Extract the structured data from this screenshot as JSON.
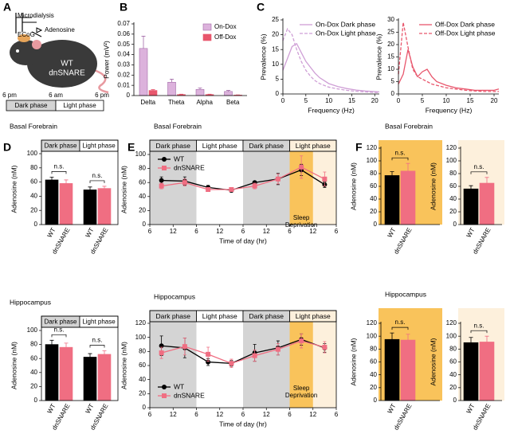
{
  "panels": [
    "A",
    "B",
    "C",
    "D",
    "E",
    "F"
  ],
  "diagram_a": {
    "labels": [
      "Microdialysis",
      "ECoG",
      "Adenosine"
    ],
    "genotype": [
      "WT",
      "dnSNARE"
    ],
    "times": [
      "6 pm",
      "6 am",
      "6 pm"
    ],
    "phases": [
      "Dark phase",
      "Light phase"
    ]
  },
  "chart_data": [
    {
      "type": "bar",
      "ylabel": "Power (mV²)",
      "categories": [
        "Delta",
        "Theta",
        "Alpha",
        "Beta"
      ],
      "series": [
        {
          "name": "On-Dox",
          "color": "#dcb2dc",
          "values": [
            0.046,
            0.013,
            0.006,
            0.004
          ],
          "errors": [
            0.012,
            0.003,
            0.0015,
            0.001
          ]
        },
        {
          "name": "Off-Dox",
          "color": "#e8566c",
          "values": [
            0.005,
            0.001,
            0.001,
            0.0005
          ],
          "errors": [
            0.0008,
            0.0003,
            0.0003,
            0.0002
          ]
        }
      ],
      "ylim": [
        0,
        0.07
      ],
      "yticks": [
        0,
        0.01,
        0.02,
        0.03,
        0.04,
        0.05,
        0.06,
        0.07
      ],
      "legend": "upper right"
    },
    {
      "type": "line",
      "xlabel": "Frequency (Hz)",
      "ylabel": "Prevalence (%)",
      "x": [
        0,
        1,
        2,
        3,
        4,
        5,
        6,
        7,
        8,
        10,
        12,
        14,
        16,
        18,
        20,
        21
      ],
      "series": [
        {
          "name": "On-Dox Dark phase",
          "color": "#cf9fd6",
          "line_style": "solid",
          "values": [
            8,
            12,
            16,
            17,
            14,
            11,
            9,
            7,
            5.5,
            3.5,
            2.5,
            1.8,
            1.3,
            1,
            0.8,
            0.7
          ]
        },
        {
          "name": "On-Dox Light phase",
          "color": "#cf9fd6",
          "line_style": "dashed",
          "values": [
            18,
            22,
            20,
            15,
            11,
            8,
            6,
            4.5,
            3.5,
            2.3,
            1.7,
            1.2,
            0.9,
            0.7,
            0.5,
            0.5
          ]
        }
      ],
      "xlim": [
        0,
        21
      ],
      "xticks": [
        0,
        5,
        10,
        15,
        20
      ],
      "ylim": [
        0,
        25
      ],
      "yticks": [
        0,
        5,
        10,
        15,
        20,
        25
      ],
      "legend": "upper right"
    },
    {
      "type": "line",
      "xlabel": "Frequency (Hz)",
      "ylabel": "Prevalence (%)",
      "x": [
        0,
        1,
        2,
        3,
        4,
        5,
        6,
        7,
        8,
        10,
        12,
        14,
        16,
        18,
        20,
        21
      ],
      "series": [
        {
          "name": "Off-Dox Dark phase",
          "color": "#e8566c",
          "line_style": "solid",
          "values": [
            4,
            8,
            18,
            11,
            7,
            9,
            10,
            7,
            5,
            3.5,
            2.5,
            2,
            1.5,
            1.5,
            1.5,
            2
          ]
        },
        {
          "name": "Off-Dox Light phase",
          "color": "#e8566c",
          "line_style": "dashed",
          "values": [
            8,
            29,
            19,
            10,
            7,
            6,
            5,
            4,
            3.5,
            2.5,
            2,
            1.5,
            1.2,
            1,
            1,
            1
          ]
        }
      ],
      "xlim": [
        0,
        21
      ],
      "xticks": [
        0,
        5,
        10,
        15,
        20
      ],
      "ylim": [
        0,
        30
      ],
      "yticks": [
        0,
        5,
        10,
        15,
        20,
        25,
        30
      ],
      "legend": "upper right"
    },
    {
      "type": "bar",
      "title": "Basal Forebrain",
      "ylabel": "Adenosine (nM)",
      "categories": [
        "Dark phase",
        "Light phase"
      ],
      "category_colors": [
        "#d4d4d4",
        "#ffffff"
      ],
      "series": [
        {
          "name": "WT",
          "color": "#000000",
          "values": [
            63,
            49
          ],
          "errors": [
            4,
            4
          ]
        },
        {
          "name": "dnSNARE",
          "color": "#f06e82",
          "values": [
            58,
            51
          ],
          "errors": [
            5,
            3
          ]
        }
      ],
      "ylim": [
        0,
        100
      ],
      "yticks": [
        0,
        20,
        40,
        60,
        80,
        100
      ],
      "annotations": [
        "n.s.",
        "n.s."
      ],
      "frame": true
    },
    {
      "type": "bar",
      "title": "Hippocampus",
      "ylabel": "Adenosine (nM)",
      "categories": [
        "Dark phase",
        "Light phase"
      ],
      "category_colors": [
        "#d4d4d4",
        "#ffffff"
      ],
      "series": [
        {
          "name": "WT",
          "color": "#000000",
          "values": [
            80,
            62
          ],
          "errors": [
            6,
            5
          ]
        },
        {
          "name": "dnSNARE",
          "color": "#f06e82",
          "values": [
            76,
            66
          ],
          "errors": [
            6,
            5
          ]
        }
      ],
      "ylim": [
        0,
        100
      ],
      "yticks": [
        0,
        20,
        40,
        60,
        80,
        100
      ],
      "annotations": [
        "n.s.",
        "n.s."
      ],
      "frame": true
    },
    {
      "type": "line",
      "title": "Basal Forebrain",
      "xlabel": "Time of day (hr)",
      "ylabel": "Adenosine (nM)",
      "x": [
        3,
        9,
        15,
        21,
        27,
        33,
        39,
        45
      ],
      "xlim": [
        0,
        48
      ],
      "xticks": [
        {
          "value": 0,
          "label": "6"
        },
        {
          "value": 6,
          "label": "12"
        },
        {
          "value": 12,
          "label": "6"
        },
        {
          "value": 18,
          "label": "12"
        },
        {
          "value": 24,
          "label": "6"
        },
        {
          "value": 30,
          "label": "12"
        },
        {
          "value": 36,
          "label": "6"
        },
        {
          "value": 42,
          "label": "12"
        },
        {
          "value": 48,
          "label": "6"
        }
      ],
      "ylim": [
        0,
        100
      ],
      "yticks": [
        0,
        20,
        40,
        60,
        80,
        100
      ],
      "frame": true,
      "bands": [
        {
          "label": "Dark phase",
          "x": [
            0,
            12
          ],
          "color": "#d4d4d4"
        },
        {
          "label": "Light phase",
          "x": [
            12,
            24
          ],
          "color": "#ffffff"
        },
        {
          "label": "Dark phase",
          "x": [
            24,
            36
          ],
          "color": "#d4d4d4"
        },
        {
          "label": "Light phase",
          "x": [
            36,
            48
          ],
          "color": "#fdf0dc"
        }
      ],
      "shading": [
        {
          "label": "Sleep Deprivation",
          "x": [
            36,
            42
          ],
          "color": "#f9c35b"
        }
      ],
      "series": [
        {
          "name": "WT",
          "color": "#000000",
          "marker": "circle",
          "values": [
            63,
            62,
            53,
            49,
            60,
            65,
            78,
            57
          ],
          "errors": [
            5,
            6,
            3,
            3,
            2,
            8,
            8,
            4
          ]
        },
        {
          "name": "dnSNARE",
          "color": "#f06e82",
          "marker": "square",
          "values": [
            55,
            60,
            50,
            50,
            55,
            65,
            82,
            65
          ],
          "errors": [
            4,
            5,
            3,
            3,
            4,
            7,
            16,
            10
          ]
        }
      ],
      "legend": "upper left"
    },
    {
      "type": "line",
      "title": "Hippocampus",
      "xlabel": "Time of day (hr)",
      "ylabel": "Adenosine (nM)",
      "x": [
        3,
        9,
        15,
        21,
        27,
        33,
        39,
        45
      ],
      "xlim": [
        0,
        48
      ],
      "xticks": [
        {
          "value": 0,
          "label": "6"
        },
        {
          "value": 6,
          "label": "12"
        },
        {
          "value": 12,
          "label": "6"
        },
        {
          "value": 18,
          "label": "12"
        },
        {
          "value": 24,
          "label": "6"
        },
        {
          "value": 30,
          "label": "12"
        },
        {
          "value": 36,
          "label": "6"
        },
        {
          "value": 42,
          "label": "12"
        },
        {
          "value": 48,
          "label": "6"
        }
      ],
      "ylim": [
        0,
        120
      ],
      "yticks": [
        0,
        20,
        40,
        60,
        80,
        100,
        120
      ],
      "frame": true,
      "bands": [
        {
          "label": "Dark phase",
          "x": [
            0,
            12
          ],
          "color": "#d4d4d4"
        },
        {
          "label": "Light phase",
          "x": [
            12,
            24
          ],
          "color": "#ffffff"
        },
        {
          "label": "Dark phase",
          "x": [
            24,
            36
          ],
          "color": "#d4d4d4"
        },
        {
          "label": "Light phase",
          "x": [
            36,
            48
          ],
          "color": "#fdf0dc"
        }
      ],
      "shading": [
        {
          "label": "Sleep Deprivation",
          "x": [
            36,
            42
          ],
          "color": "#f9c35b"
        }
      ],
      "series": [
        {
          "name": "WT",
          "color": "#000000",
          "marker": "circle",
          "values": [
            88,
            85,
            65,
            63,
            78,
            85,
            97,
            85
          ],
          "errors": [
            14,
            14,
            5,
            4,
            12,
            10,
            8,
            6
          ]
        },
        {
          "name": "dnSNARE",
          "color": "#f06e82",
          "marker": "square",
          "values": [
            78,
            87,
            76,
            63,
            74,
            83,
            95,
            86
          ],
          "errors": [
            8,
            12,
            10,
            6,
            8,
            8,
            10,
            8
          ]
        }
      ],
      "legend": "lower left"
    },
    {
      "type": "bar",
      "title": "Basal Forebrain",
      "ylabel": "Adenosine (nM)",
      "background": "#f9c35b",
      "series": [
        {
          "name": "WT",
          "color": "#000000",
          "values": [
            77
          ],
          "errors": [
            6
          ]
        },
        {
          "name": "dnSNARE",
          "color": "#f06e82",
          "values": [
            84
          ],
          "errors": [
            12
          ]
        }
      ],
      "ylim": [
        0,
        120
      ],
      "yticks": [
        0,
        20,
        40,
        60,
        80,
        100,
        120
      ],
      "annotations": [
        "n.s."
      ]
    },
    {
      "type": "bar",
      "ylabel": "Adenosine (nM)",
      "background": "#fdf0dc",
      "series": [
        {
          "name": "WT",
          "color": "#000000",
          "values": [
            56
          ],
          "errors": [
            5
          ]
        },
        {
          "name": "dnSNARE",
          "color": "#f06e82",
          "values": [
            65
          ],
          "errors": [
            9
          ]
        }
      ],
      "ylim": [
        0,
        120
      ],
      "yticks": [
        0,
        20,
        40,
        60,
        80,
        100,
        120
      ],
      "annotations": [
        "n.s."
      ]
    },
    {
      "type": "bar",
      "title": "Hippocampus",
      "ylabel": "Adenosine (nM)",
      "background": "#f9c35b",
      "series": [
        {
          "name": "WT",
          "color": "#000000",
          "values": [
            95
          ],
          "errors": [
            10
          ]
        },
        {
          "name": "dnSNARE",
          "color": "#f06e82",
          "values": [
            94
          ],
          "errors": [
            9
          ]
        }
      ],
      "ylim": [
        0,
        120
      ],
      "yticks": [
        0,
        20,
        40,
        60,
        80,
        100,
        120
      ],
      "annotations": [
        "n.s."
      ]
    },
    {
      "type": "bar",
      "ylabel": "Adenosine (nM)",
      "background": "#fdf0dc",
      "series": [
        {
          "name": "WT",
          "color": "#000000",
          "values": [
            90
          ],
          "errors": [
            8
          ]
        },
        {
          "name": "dnSNARE",
          "color": "#f06e82",
          "values": [
            91
          ],
          "errors": [
            9
          ]
        }
      ],
      "ylim": [
        0,
        120
      ],
      "yticks": [
        0,
        20,
        40,
        60,
        80,
        100,
        120
      ],
      "annotations": [
        "n.s."
      ]
    }
  ]
}
